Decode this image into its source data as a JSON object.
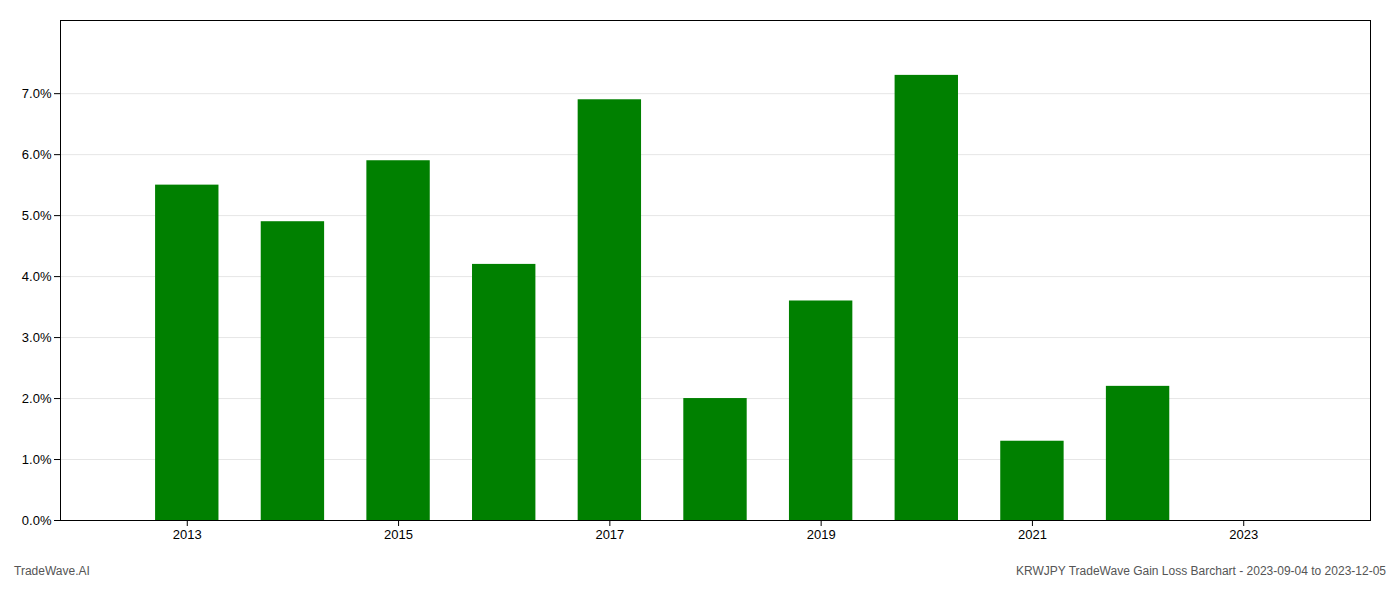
{
  "chart_data": {
    "type": "bar",
    "x": [
      2013,
      2014,
      2015,
      2016,
      2017,
      2018,
      2019,
      2020,
      2021,
      2022
    ],
    "values": [
      0.055,
      0.049,
      0.059,
      0.042,
      0.069,
      0.02,
      0.036,
      0.073,
      0.013,
      0.022
    ],
    "color": "#008000",
    "xlim": [
      2011.8,
      2024.2
    ],
    "xticks": [
      2013,
      2015,
      2017,
      2019,
      2021,
      2023
    ],
    "ylim": [
      0,
      0.082
    ],
    "yticks": [
      {
        "value": 0.0,
        "label": "0.0%"
      },
      {
        "value": 0.01,
        "label": "1.0%"
      },
      {
        "value": 0.02,
        "label": "2.0%"
      },
      {
        "value": 0.03,
        "label": "3.0%"
      },
      {
        "value": 0.04,
        "label": "4.0%"
      },
      {
        "value": 0.05,
        "label": "5.0%"
      },
      {
        "value": 0.06,
        "label": "6.0%"
      },
      {
        "value": 0.07,
        "label": "7.0%"
      }
    ],
    "grid": true,
    "annotations": [
      "TradeWave.AI",
      "KRWJPY TradeWave Gain Loss Barchart - 2023-09-04 to 2023-12-05"
    ]
  }
}
